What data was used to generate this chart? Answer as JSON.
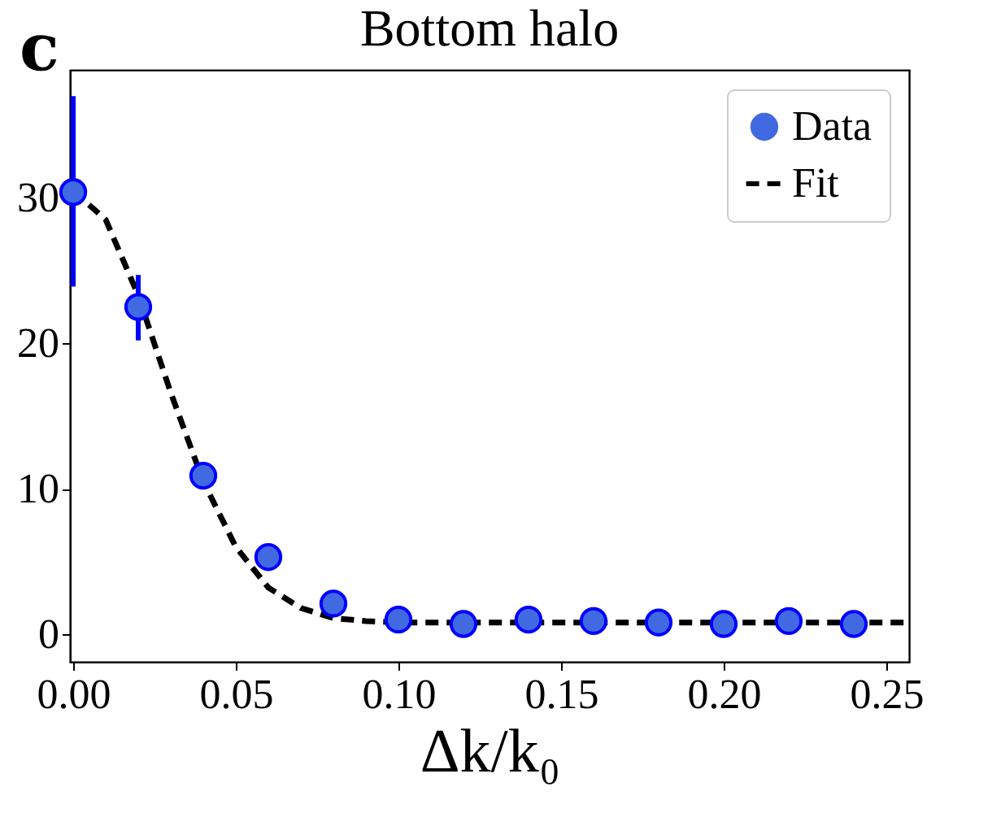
{
  "chart_data": {
    "type": "scatter",
    "title": "Bottom halo",
    "xlabel": "Δk/k₀",
    "annotations": [
      "c"
    ],
    "xlim": [
      -0.001,
      0.257
    ],
    "ylim": [
      -1.9,
      38.8
    ],
    "xticks": [
      {
        "value": 0,
        "label": "0.00"
      },
      {
        "value": 0.05,
        "label": "0.05"
      },
      {
        "value": 0.1,
        "label": "0.10"
      },
      {
        "value": 0.15,
        "label": "0.15"
      },
      {
        "value": 0.2,
        "label": "0.20"
      },
      {
        "value": 0.25,
        "label": "0.25"
      }
    ],
    "yticks": [
      0,
      10,
      20,
      30
    ],
    "grid": false,
    "legend": "top right",
    "series": [
      {
        "name": "Data",
        "marker": "circle",
        "color": "#4169e1",
        "x": [
          0,
          0.02,
          0.04,
          0.06,
          0.08,
          0.1,
          0.12,
          0.14,
          0.16,
          0.18,
          0.2,
          0.22,
          0.24
        ],
        "values": [
          30.4,
          22.5,
          10.9,
          5.3,
          2.1,
          1.0,
          0.7,
          1.0,
          0.9,
          0.8,
          0.7,
          0.9,
          0.7
        ],
        "errors": [
          [
            23.9,
            37.0
          ],
          [
            20.2,
            24.7
          ],
          [
            10.0,
            11.3
          ],
          null,
          null,
          null,
          null,
          null,
          null,
          null,
          null,
          null,
          null
        ]
      },
      {
        "name": "Fit",
        "type": "line",
        "color": "#000000",
        "line_style": "dashed",
        "x": [
          0,
          0.01,
          0.02,
          0.03,
          0.04,
          0.05,
          0.06,
          0.07,
          0.08,
          0.09,
          0.1,
          0.15,
          0.2,
          0.257
        ],
        "values": [
          30.5,
          28.5,
          23.3,
          16.6,
          10.5,
          6.0,
          3.2,
          1.8,
          1.1,
          0.9,
          0.8,
          0.8,
          0.8,
          0.8
        ]
      }
    ]
  }
}
